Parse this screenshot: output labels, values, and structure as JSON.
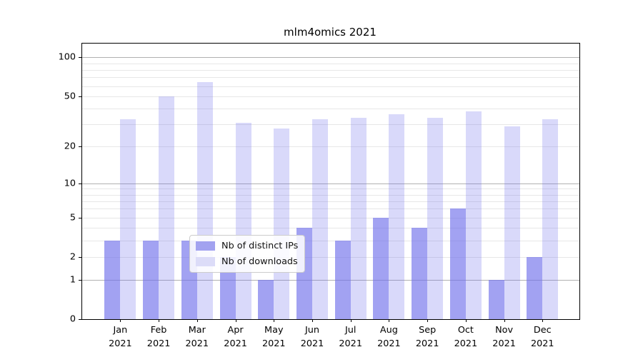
{
  "title": "mlm4omics 2021",
  "legend": {
    "items": [
      {
        "label": "Nb of distinct IPs",
        "series_key": "ips"
      },
      {
        "label": "Nb of downloads",
        "series_key": "downloads"
      }
    ]
  },
  "chart_data": {
    "type": "bar",
    "title": "mlm4omics 2021",
    "categories": [
      "Jan 2021",
      "Feb 2021",
      "Mar 2021",
      "Apr 2021",
      "May 2021",
      "Jun 2021",
      "Jul 2021",
      "Aug 2021",
      "Sep 2021",
      "Oct 2021",
      "Nov 2021",
      "Dec 2021"
    ],
    "series": [
      {
        "key": "ips",
        "name": "Nb of distinct IPs",
        "values": [
          3,
          3,
          3,
          2,
          1,
          4,
          3,
          5,
          4,
          6,
          1,
          2
        ]
      },
      {
        "key": "downloads",
        "name": "Nb of downloads",
        "values": [
          33,
          50,
          64,
          31,
          28,
          33,
          34,
          36,
          34,
          38,
          29,
          33
        ]
      }
    ],
    "xlabel": "",
    "ylabel": "",
    "yscale": "log1p",
    "ylim": [
      0,
      128
    ],
    "yticks": [
      0,
      1,
      2,
      5,
      10,
      20,
      50,
      100
    ],
    "major_gridlines": [
      1,
      10,
      100
    ],
    "minor_gridlines": [
      2,
      3,
      4,
      5,
      6,
      7,
      8,
      9,
      20,
      30,
      40,
      50,
      60,
      70,
      80,
      90
    ],
    "grid": "on",
    "legend_position": "lower center",
    "colors": {
      "ips": "rgba(110,110,235,0.64)",
      "downloads": "rgba(110,110,235,0.26)",
      "ips_hex_on_white": "#a2a2f0",
      "downloads_hex_on_white": "#dcdcf8",
      "major_grid": "#b1b1b1",
      "minor_grid": "#e7e7e7",
      "spine": "#000000"
    }
  }
}
